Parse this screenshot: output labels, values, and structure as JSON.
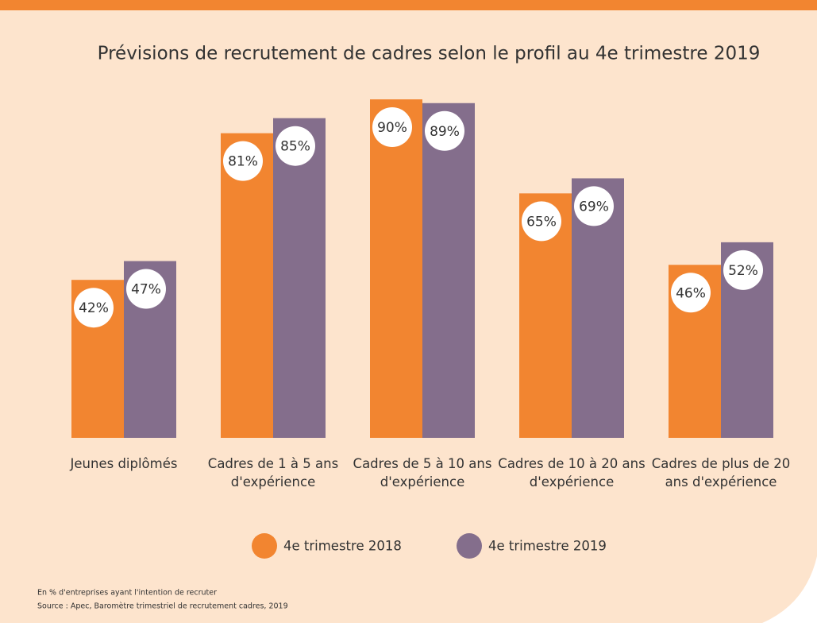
{
  "chart_data": {
    "type": "bar",
    "title": "Prévisions de recrutement de cadres selon le profil au 4e trimestre 2019",
    "categories": [
      "Jeunes diplômés",
      "Cadres de 1 à 5 ans d'expérience",
      "Cadres de 5 à 10 ans d'expérience",
      "Cadres de 10 à 20 ans d'expérience",
      "Cadres de plus de 20 ans d'expérience"
    ],
    "series": [
      {
        "name": "4e trimestre 2018",
        "color": "#f28530",
        "values": [
          42,
          81,
          90,
          65,
          46
        ],
        "value_labels": [
          "42%",
          "81%",
          "90%",
          "65%",
          "46%"
        ]
      },
      {
        "name": "4e trimestre 2019",
        "color": "#846e8c",
        "values": [
          47,
          85,
          89,
          69,
          52
        ],
        "value_labels": [
          "47%",
          "85%",
          "89%",
          "69%",
          "52%"
        ]
      }
    ],
    "notes": [
      "En % d'entreprises ayant l'intention de recruter",
      "Source : Apec, Baromètre trimestriel de recrutement cadres, 2019"
    ]
  }
}
